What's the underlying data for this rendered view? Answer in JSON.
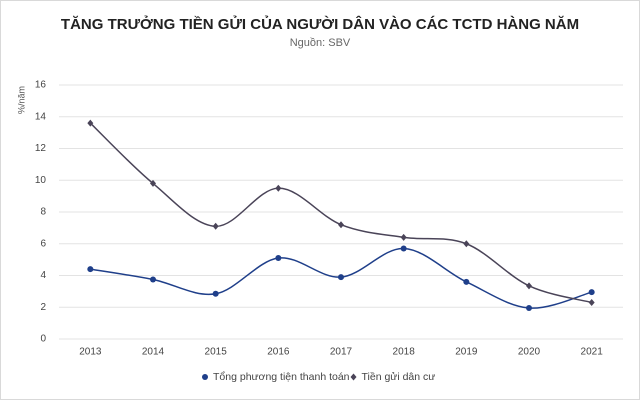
{
  "chart_data": {
    "type": "line",
    "title": "TĂNG TRƯỞNG TIỀN GỬI CỦA NGƯỜI DÂN VÀO CÁC TCTD HÀNG NĂM",
    "subtitle": "Nguồn: SBV",
    "y_label": "%/năm",
    "categories": [
      "2013",
      "2014",
      "2015",
      "2016",
      "2017",
      "2018",
      "2019",
      "2020",
      "2021"
    ],
    "series": [
      {
        "name": "Tổng phương tiện thanh toán",
        "color": "#1f3f8a",
        "marker": "circle",
        "values": [
          4.4,
          3.75,
          2.85,
          5.1,
          3.9,
          5.7,
          3.6,
          1.95,
          2.95
        ]
      },
      {
        "name": "Tiền gửi dân cư",
        "color": "#4a4458",
        "marker": "diamond",
        "values": [
          13.6,
          9.8,
          7.1,
          9.5,
          7.2,
          6.4,
          6.0,
          3.35,
          2.3
        ]
      }
    ],
    "ylim": [
      0,
      16
    ],
    "yticks": [
      0,
      2,
      4,
      6,
      8,
      10,
      12,
      14,
      16
    ],
    "grid": true,
    "smooth": true,
    "legend": "bottom"
  }
}
